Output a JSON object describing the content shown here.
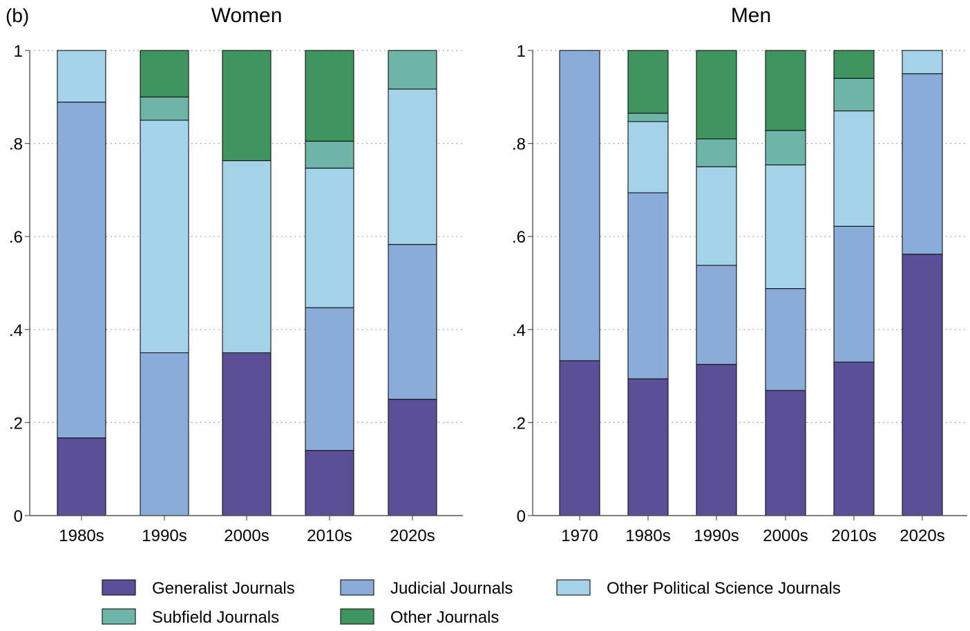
{
  "panel_label": "(b)",
  "colors": {
    "Generalist Journals": "#5b4f99",
    "Judicial Journals": "#89acd8",
    "Other Political Science Journals": "#a4d3e9",
    "Subfield Journals": "#6cb5a7",
    "Other Journals": "#3f955e"
  },
  "legend": [
    "Generalist Journals",
    "Judicial Journals",
    "Other Political Science Journals",
    "Subfield Journals",
    "Other Journals"
  ],
  "chart_data": [
    {
      "type": "bar",
      "stacked": true,
      "title": "Women",
      "categories": [
        "1980s",
        "1990s",
        "2000s",
        "2010s",
        "2020s"
      ],
      "yticks": [
        "0",
        ".2",
        ".4",
        ".6",
        ".8",
        "1"
      ],
      "ylim": [
        0,
        1
      ],
      "grid": true,
      "legend_position": "bottom",
      "series": [
        {
          "name": "Generalist Journals",
          "values": [
            0.167,
            0,
            0.35,
            0.14,
            0.25
          ]
        },
        {
          "name": "Judicial Journals",
          "values": [
            0.722,
            0.35,
            0,
            0.307,
            0.333
          ]
        },
        {
          "name": "Other Political Science Journals",
          "values": [
            0.111,
            0.5,
            0.413,
            0.3,
            0.334
          ]
        },
        {
          "name": "Subfield Journals",
          "values": [
            0,
            0.05,
            0,
            0.058,
            0.083
          ]
        },
        {
          "name": "Other Journals",
          "values": [
            0,
            0.1,
            0.237,
            0.195,
            0
          ]
        }
      ]
    },
    {
      "type": "bar",
      "stacked": true,
      "title": "Men",
      "categories": [
        "1970",
        "1980s",
        "1990s",
        "2000s",
        "2010s",
        "2020s"
      ],
      "yticks": [
        "0",
        ".2",
        ".4",
        ".6",
        ".8",
        "1"
      ],
      "ylim": [
        0,
        1
      ],
      "grid": true,
      "legend_position": "bottom",
      "series": [
        {
          "name": "Generalist Journals",
          "values": [
            0.333,
            0.294,
            0.325,
            0.269,
            0.33,
            0.562
          ]
        },
        {
          "name": "Judicial Journals",
          "values": [
            0.667,
            0.4,
            0.213,
            0.219,
            0.292,
            0.388
          ]
        },
        {
          "name": "Other Political Science Journals",
          "values": [
            0,
            0.153,
            0.212,
            0.266,
            0.248,
            0.05
          ]
        },
        {
          "name": "Subfield Journals",
          "values": [
            0,
            0.018,
            0.06,
            0.074,
            0.07,
            0
          ]
        },
        {
          "name": "Other Journals",
          "values": [
            0,
            0.135,
            0.19,
            0.172,
            0.06,
            0
          ]
        }
      ]
    }
  ]
}
